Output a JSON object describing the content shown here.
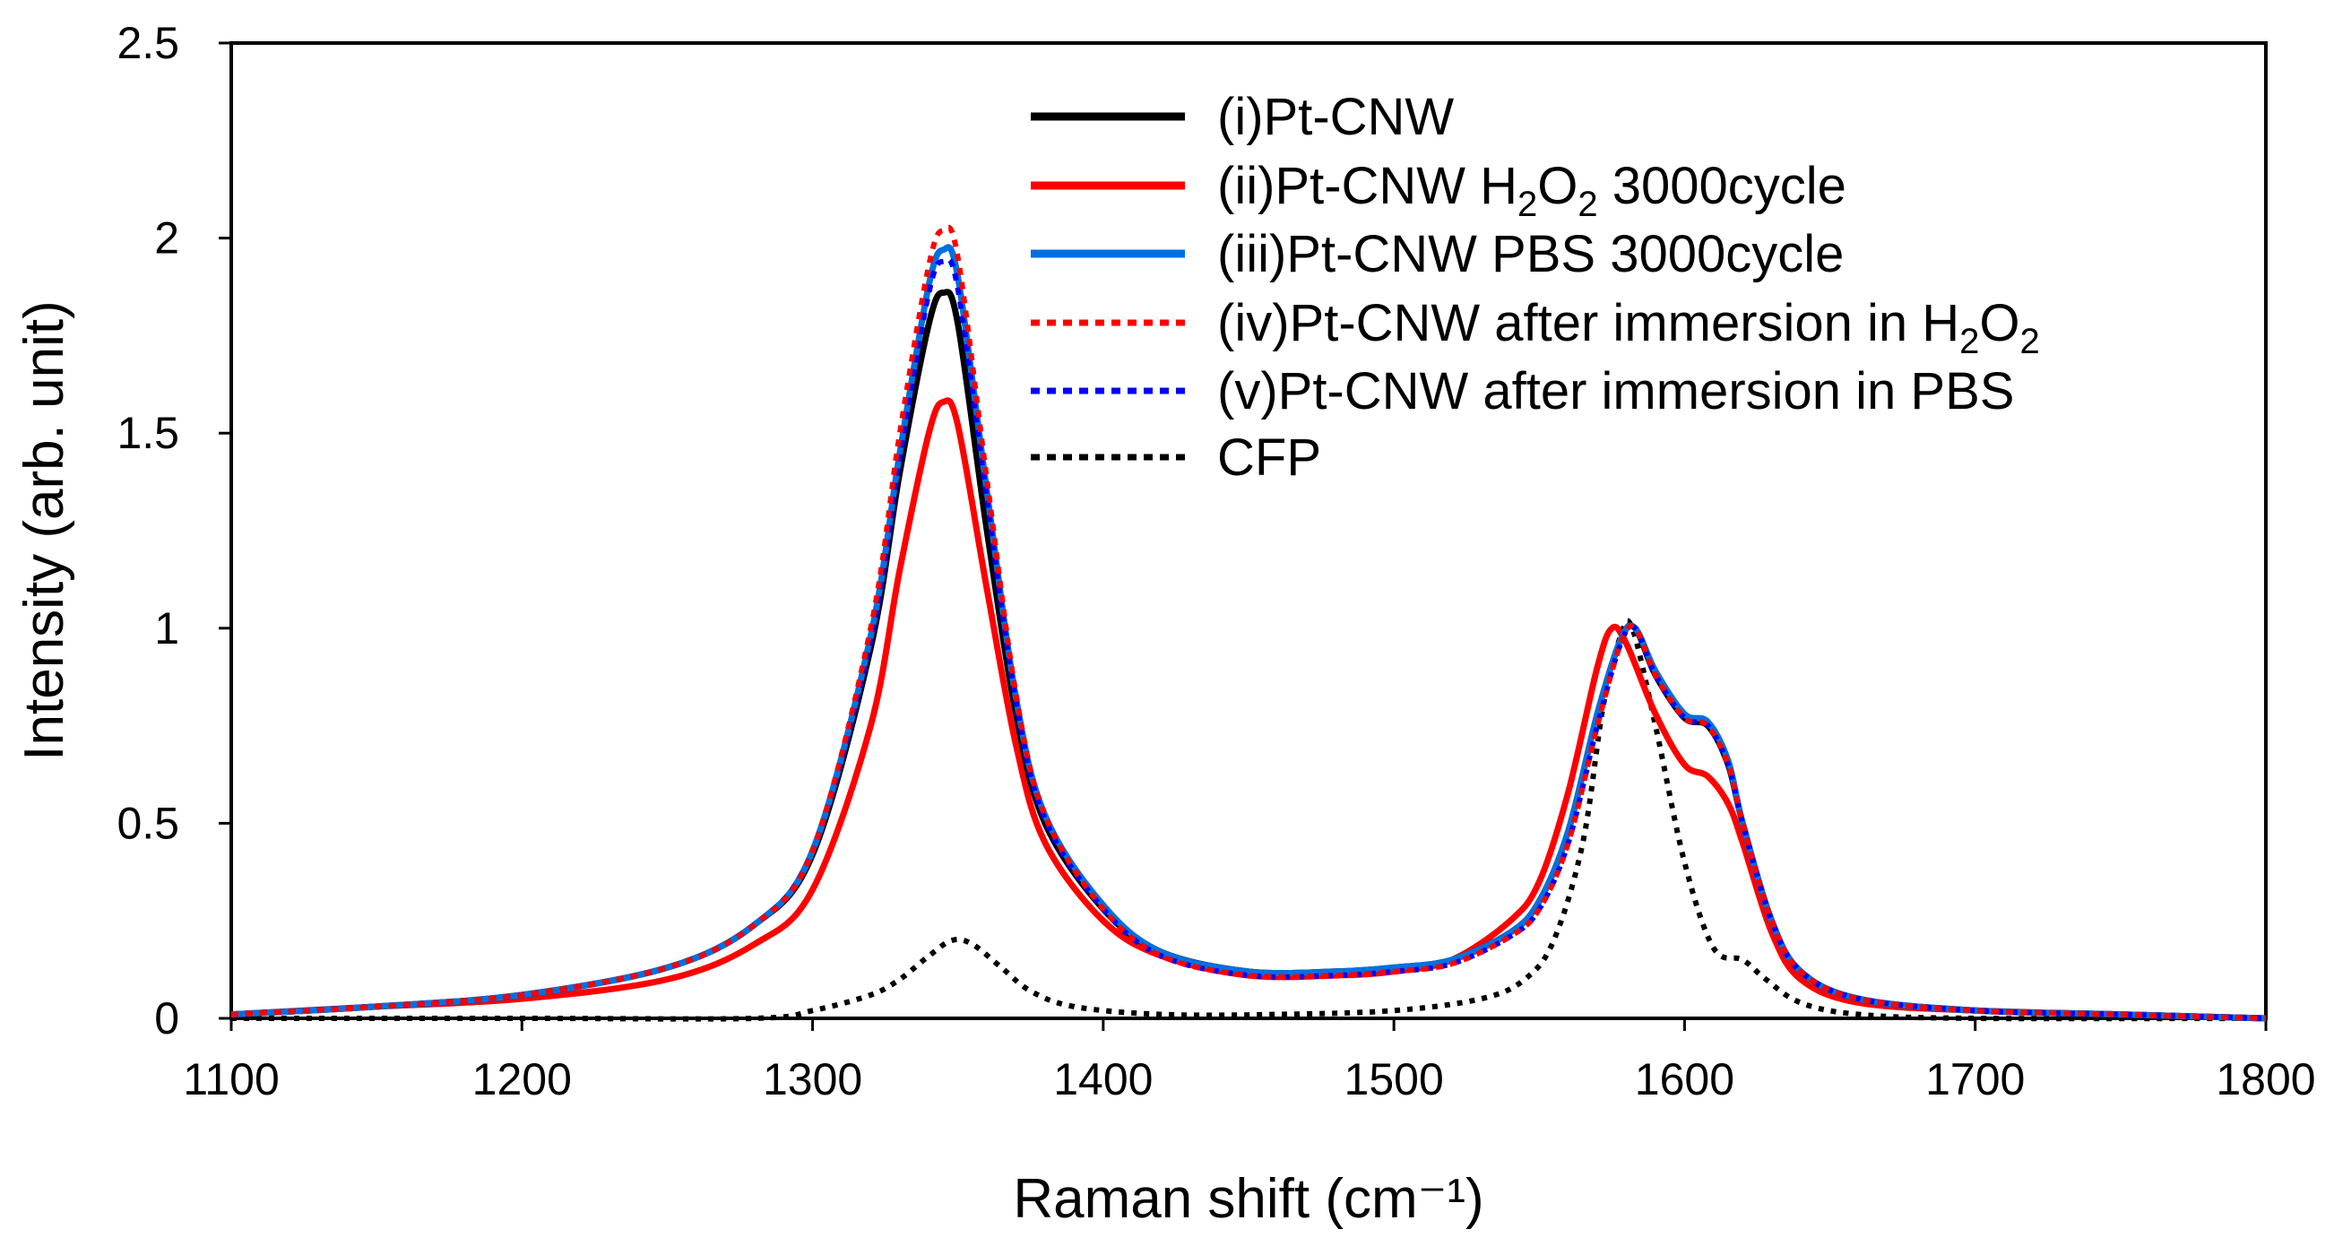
{
  "chart_data": {
    "type": "line",
    "title": "",
    "xlabel": "Raman shift (cm⁻¹)",
    "ylabel": "Intensity (arb. unit)",
    "xlim": [
      1100,
      1800
    ],
    "ylim": [
      0,
      2.5
    ],
    "xticks": [
      1100,
      1200,
      1300,
      1400,
      1500,
      1600,
      1700,
      1800
    ],
    "yticks": [
      0,
      0.5,
      1,
      1.5,
      2,
      2.5
    ],
    "xtick_labels": [
      "1100",
      "1200",
      "1300",
      "1400",
      "1500",
      "1600",
      "1700",
      "1800"
    ],
    "ytick_labels": [
      "0",
      "0.5",
      "1",
      "1.5",
      "2",
      "2.5"
    ],
    "grid": false,
    "legend_position": "top-right",
    "series": [
      {
        "name": "(i)Pt-CNW",
        "legend": {
          "prefix": "(i)Pt-CNW"
        },
        "color": "#000000",
        "style": "solid",
        "x": [
          1100,
          1150,
          1200,
          1250,
          1280,
          1300,
          1320,
          1330,
          1340,
          1345,
          1350,
          1360,
          1370,
          1380,
          1400,
          1420,
          1450,
          1480,
          1500,
          1520,
          1540,
          1550,
          1560,
          1570,
          1578,
          1583,
          1590,
          1600,
          1608,
          1615,
          1620,
          1630,
          1640,
          1660,
          1700,
          1750,
          1800
        ],
        "y": [
          0.01,
          0.03,
          0.06,
          0.13,
          0.24,
          0.42,
          0.95,
          1.4,
          1.78,
          1.86,
          1.78,
          1.25,
          0.78,
          0.5,
          0.28,
          0.17,
          0.12,
          0.12,
          0.13,
          0.15,
          0.22,
          0.3,
          0.48,
          0.78,
          0.97,
          1.0,
          0.88,
          0.77,
          0.75,
          0.65,
          0.5,
          0.25,
          0.12,
          0.05,
          0.02,
          0.01,
          0.0
        ]
      },
      {
        "name": "(ii)Pt-CNW H2O2 3000cycle",
        "legend": {
          "prefix": "(ii)Pt-CNW H",
          "sub1": "2",
          "mid": "O",
          "sub2": "2",
          "suffix": " 3000cycle"
        },
        "color": "#ff0000",
        "style": "solid",
        "x": [
          1100,
          1150,
          1200,
          1250,
          1280,
          1300,
          1320,
          1330,
          1340,
          1345,
          1350,
          1360,
          1370,
          1380,
          1400,
          1420,
          1450,
          1480,
          1500,
          1520,
          1540,
          1550,
          1560,
          1570,
          1575,
          1580,
          1590,
          1600,
          1608,
          1615,
          1620,
          1630,
          1640,
          1660,
          1700,
          1750,
          1800
        ],
        "y": [
          0.01,
          0.03,
          0.05,
          0.1,
          0.19,
          0.33,
          0.75,
          1.15,
          1.5,
          1.58,
          1.52,
          1.1,
          0.7,
          0.45,
          0.25,
          0.16,
          0.11,
          0.11,
          0.12,
          0.15,
          0.25,
          0.35,
          0.58,
          0.9,
          1.0,
          0.96,
          0.78,
          0.65,
          0.62,
          0.55,
          0.45,
          0.22,
          0.1,
          0.04,
          0.02,
          0.01,
          0.0
        ]
      },
      {
        "name": "(iii)Pt-CNW PBS 3000cycle",
        "legend": {
          "prefix": "(iii)Pt-CNW PBS 3000cycle"
        },
        "color": "#0070e0",
        "style": "solid",
        "x": [
          1100,
          1150,
          1200,
          1250,
          1280,
          1300,
          1320,
          1330,
          1340,
          1345,
          1350,
          1360,
          1370,
          1380,
          1400,
          1420,
          1450,
          1480,
          1500,
          1520,
          1540,
          1550,
          1560,
          1570,
          1578,
          1583,
          1590,
          1600,
          1608,
          1615,
          1620,
          1630,
          1640,
          1660,
          1700,
          1750,
          1800
        ],
        "y": [
          0.01,
          0.03,
          0.06,
          0.13,
          0.24,
          0.43,
          0.98,
          1.45,
          1.88,
          1.97,
          1.9,
          1.35,
          0.82,
          0.52,
          0.29,
          0.17,
          0.12,
          0.12,
          0.13,
          0.15,
          0.22,
          0.3,
          0.48,
          0.78,
          0.97,
          1.0,
          0.89,
          0.78,
          0.76,
          0.66,
          0.5,
          0.25,
          0.12,
          0.05,
          0.02,
          0.01,
          0.0
        ]
      },
      {
        "name": "(iv)Pt-CNW after immersion in H2O2",
        "legend": {
          "prefix": "(iv)Pt-CNW after immersion in H",
          "sub1": "2",
          "mid": "O",
          "sub2": "2",
          "suffix": ""
        },
        "color": "#ff0000",
        "style": "dotted",
        "x": [
          1100,
          1150,
          1200,
          1250,
          1280,
          1300,
          1320,
          1330,
          1340,
          1345,
          1350,
          1360,
          1370,
          1380,
          1400,
          1420,
          1450,
          1480,
          1500,
          1520,
          1540,
          1550,
          1560,
          1570,
          1578,
          1583,
          1590,
          1600,
          1608,
          1615,
          1620,
          1630,
          1640,
          1660,
          1700,
          1750,
          1800
        ],
        "y": [
          0.01,
          0.03,
          0.06,
          0.13,
          0.24,
          0.43,
          1.0,
          1.5,
          1.93,
          2.02,
          1.95,
          1.38,
          0.83,
          0.52,
          0.28,
          0.16,
          0.11,
          0.11,
          0.12,
          0.14,
          0.21,
          0.28,
          0.45,
          0.75,
          0.96,
          1.0,
          0.88,
          0.77,
          0.75,
          0.65,
          0.5,
          0.25,
          0.12,
          0.05,
          0.02,
          0.01,
          0.0
        ]
      },
      {
        "name": "(v)Pt-CNW after immersion in PBS",
        "legend": {
          "prefix": "(v)Pt-CNW after immersion in PBS"
        },
        "color": "#0000ff",
        "style": "dotted",
        "x": [
          1100,
          1150,
          1200,
          1250,
          1280,
          1300,
          1320,
          1330,
          1340,
          1345,
          1350,
          1360,
          1370,
          1380,
          1400,
          1420,
          1450,
          1480,
          1500,
          1520,
          1540,
          1550,
          1560,
          1570,
          1578,
          1583,
          1590,
          1600,
          1608,
          1615,
          1620,
          1630,
          1640,
          1660,
          1700,
          1750,
          1800
        ],
        "y": [
          0.01,
          0.03,
          0.06,
          0.13,
          0.24,
          0.43,
          0.97,
          1.44,
          1.86,
          1.94,
          1.87,
          1.33,
          0.81,
          0.51,
          0.28,
          0.16,
          0.11,
          0.11,
          0.12,
          0.14,
          0.21,
          0.28,
          0.45,
          0.75,
          0.96,
          1.0,
          0.88,
          0.77,
          0.75,
          0.65,
          0.5,
          0.25,
          0.12,
          0.05,
          0.02,
          0.01,
          0.0
        ]
      },
      {
        "name": "CFP",
        "legend": {
          "prefix": "CFP"
        },
        "color": "#000000",
        "style": "dotted",
        "x": [
          1100,
          1200,
          1280,
          1300,
          1320,
          1330,
          1340,
          1348,
          1355,
          1365,
          1375,
          1390,
          1420,
          1460,
          1500,
          1530,
          1545,
          1555,
          1565,
          1572,
          1578,
          1582,
          1590,
          1600,
          1610,
          1620,
          1628,
          1640,
          1660,
          1700,
          1800
        ],
        "y": [
          0.0,
          0.0,
          0.0,
          0.02,
          0.06,
          0.1,
          0.16,
          0.2,
          0.19,
          0.13,
          0.07,
          0.03,
          0.01,
          0.01,
          0.02,
          0.05,
          0.1,
          0.2,
          0.45,
          0.8,
          0.98,
          1.0,
          0.75,
          0.4,
          0.18,
          0.15,
          0.1,
          0.04,
          0.01,
          0.0,
          0.0
        ]
      }
    ]
  }
}
